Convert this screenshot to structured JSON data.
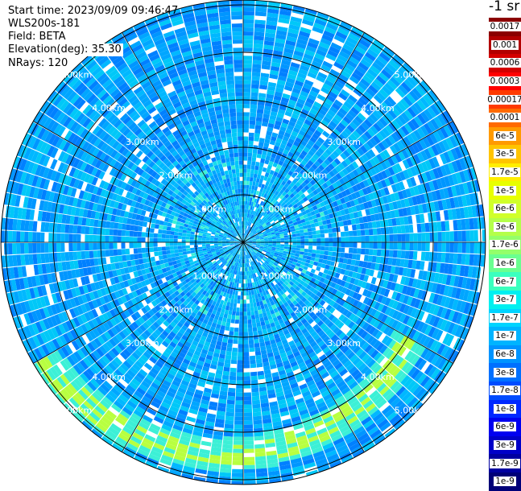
{
  "info": {
    "start_time": "Start time: 2023/09/09 09:46:47",
    "device": "WLS200s-181",
    "field": "Field: BETA",
    "elevation": "Elevation(deg): 35.30",
    "nrays": "NRays: 120"
  },
  "colorbar": {
    "unit_label": "-1 sr",
    "ticks": [
      "0.0017",
      "0.001",
      "0.0006",
      "0.0003",
      "0.00017",
      "0.0001",
      "6e-5",
      "3e-5",
      "1.7e-5",
      "1e-5",
      "6e-6",
      "3e-6",
      "1.7e-6",
      "1e-6",
      "6e-7",
      "3e-7",
      "1.7e-7",
      "1e-7",
      "6e-8",
      "3e-8",
      "1.7e-8",
      "1e-8",
      "6e-9",
      "3e-9",
      "1.7e-9",
      "1e-9"
    ],
    "colors": [
      "#8b0000",
      "#b20000",
      "#d40000",
      "#ff0000",
      "#ff3a00",
      "#ff6a00",
      "#ff9a00",
      "#ffc400",
      "#ffee00",
      "#e8ff00",
      "#d0ff2a",
      "#b4ff4a",
      "#94ff6a",
      "#6aff90",
      "#3affbe",
      "#00f0f0",
      "#00d4ff",
      "#00b4ff",
      "#0094ff",
      "#0070ff",
      "#004cff",
      "#0028ff",
      "#0000f0",
      "#0000c8",
      "#0000a0",
      "#000078"
    ]
  },
  "chart_data": {
    "type": "polar-ppi",
    "field": "BETA",
    "nrays": 120,
    "elevation_deg": 35.3,
    "range_rings_km": [
      1,
      2,
      3,
      4,
      5
    ],
    "ring_labels": [
      "1.00km",
      "2.00km",
      "3.00km",
      "4.00km",
      "5.00km"
    ],
    "spokes_deg": [
      0,
      30,
      60,
      90,
      120,
      150,
      180,
      210,
      240,
      270,
      300,
      330
    ],
    "max_range_km": 5.1
  }
}
